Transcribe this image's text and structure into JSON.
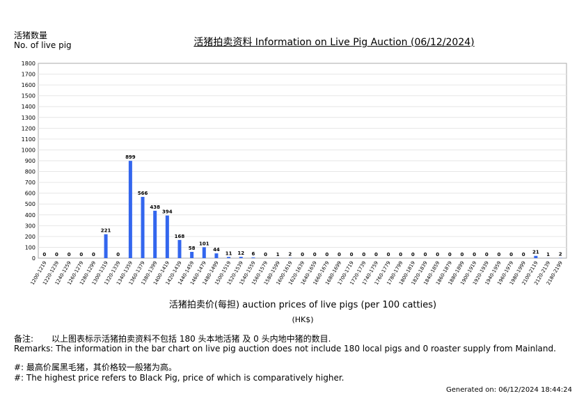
{
  "header": {
    "ylabel_zh": "活猪数量",
    "ylabel_en": "No. of live pig",
    "title": "活猪拍卖资料 Information on Live Pig Auction (06/12/2024)"
  },
  "axis": {
    "xlabel": "活猪拍卖价(每担) auction prices of live pigs (per 100 catties)",
    "unit": "(HK$)"
  },
  "footer": {
    "remark_zh_label": "备注:",
    "remark_zh_text": "以上图表标示活猪拍卖资料不包括 180 头本地活猪 及 0 头内地中猪的数目.",
    "remark_en": "Remarks: The information in the bar chart on live pig auction does not include 180 local pigs and 0 roaster supply from Mainland.",
    "note_zh": "#: 最高价属黑毛猪，其价格较一般猪为高。",
    "note_en": "#: The highest price refers to Black Pig, price of which is comparatively higher.",
    "generated": "Generated on: 06/12/2024 18:44:24"
  },
  "chart_data": {
    "type": "bar",
    "bar_color": "#3366ee",
    "ylim": [
      0,
      1800
    ],
    "yticks": [
      0,
      100,
      200,
      300,
      400,
      500,
      600,
      700,
      800,
      900,
      1000,
      1100,
      1200,
      1300,
      1400,
      1500,
      1600,
      1700,
      1800
    ],
    "grid": true,
    "categories": [
      "1200-1219",
      "1220-1239",
      "1240-1259",
      "1260-1279",
      "1280-1299",
      "1300-1319",
      "1320-1339",
      "1340-1359",
      "1360-1379",
      "1380-1399",
      "1400-1419",
      "1420-1439",
      "1440-1459",
      "1460-1479",
      "1480-1499",
      "1500-1519",
      "1520-1539",
      "1540-1559",
      "1560-1579",
      "1580-1599",
      "1600-1619",
      "1620-1639",
      "1640-1659",
      "1660-1679",
      "1680-1699",
      "1700-1719",
      "1720-1739",
      "1740-1759",
      "1760-1779",
      "1780-1799",
      "1800-1819",
      "1820-1839",
      "1840-1859",
      "1860-1879",
      "1880-1899",
      "1900-1919",
      "1920-1939",
      "1940-1959",
      "1960-1979",
      "1980-1999",
      "2100-2119",
      "2120-2139",
      "2180-2199"
    ],
    "values": [
      0,
      0,
      0,
      0,
      0,
      221,
      0,
      899,
      566,
      438,
      394,
      168,
      58,
      101,
      44,
      11,
      12,
      6,
      0,
      1,
      2,
      0,
      0,
      0,
      0,
      0,
      0,
      0,
      0,
      0,
      0,
      0,
      0,
      0,
      0,
      0,
      0,
      0,
      0,
      0,
      21,
      1,
      2
    ]
  }
}
